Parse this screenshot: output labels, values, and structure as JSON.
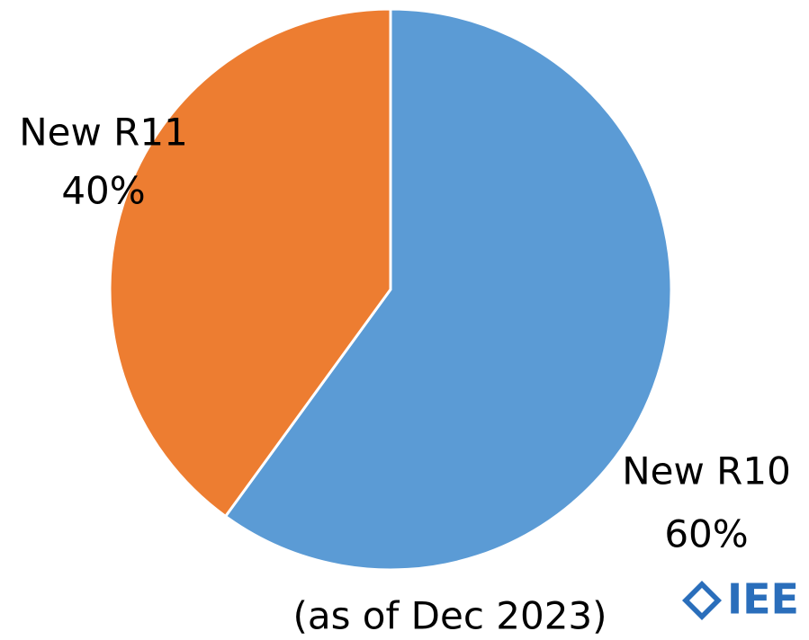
{
  "chart_data": {
    "type": "pie",
    "categories": [
      "New R10",
      "New R11"
    ],
    "values": [
      60,
      40
    ],
    "value_labels": [
      "60%",
      "40%"
    ],
    "colors": [
      "#5b9bd5",
      "#ed7d31"
    ],
    "annotation": "(as of Dec 2023)",
    "logo": "IEE"
  }
}
